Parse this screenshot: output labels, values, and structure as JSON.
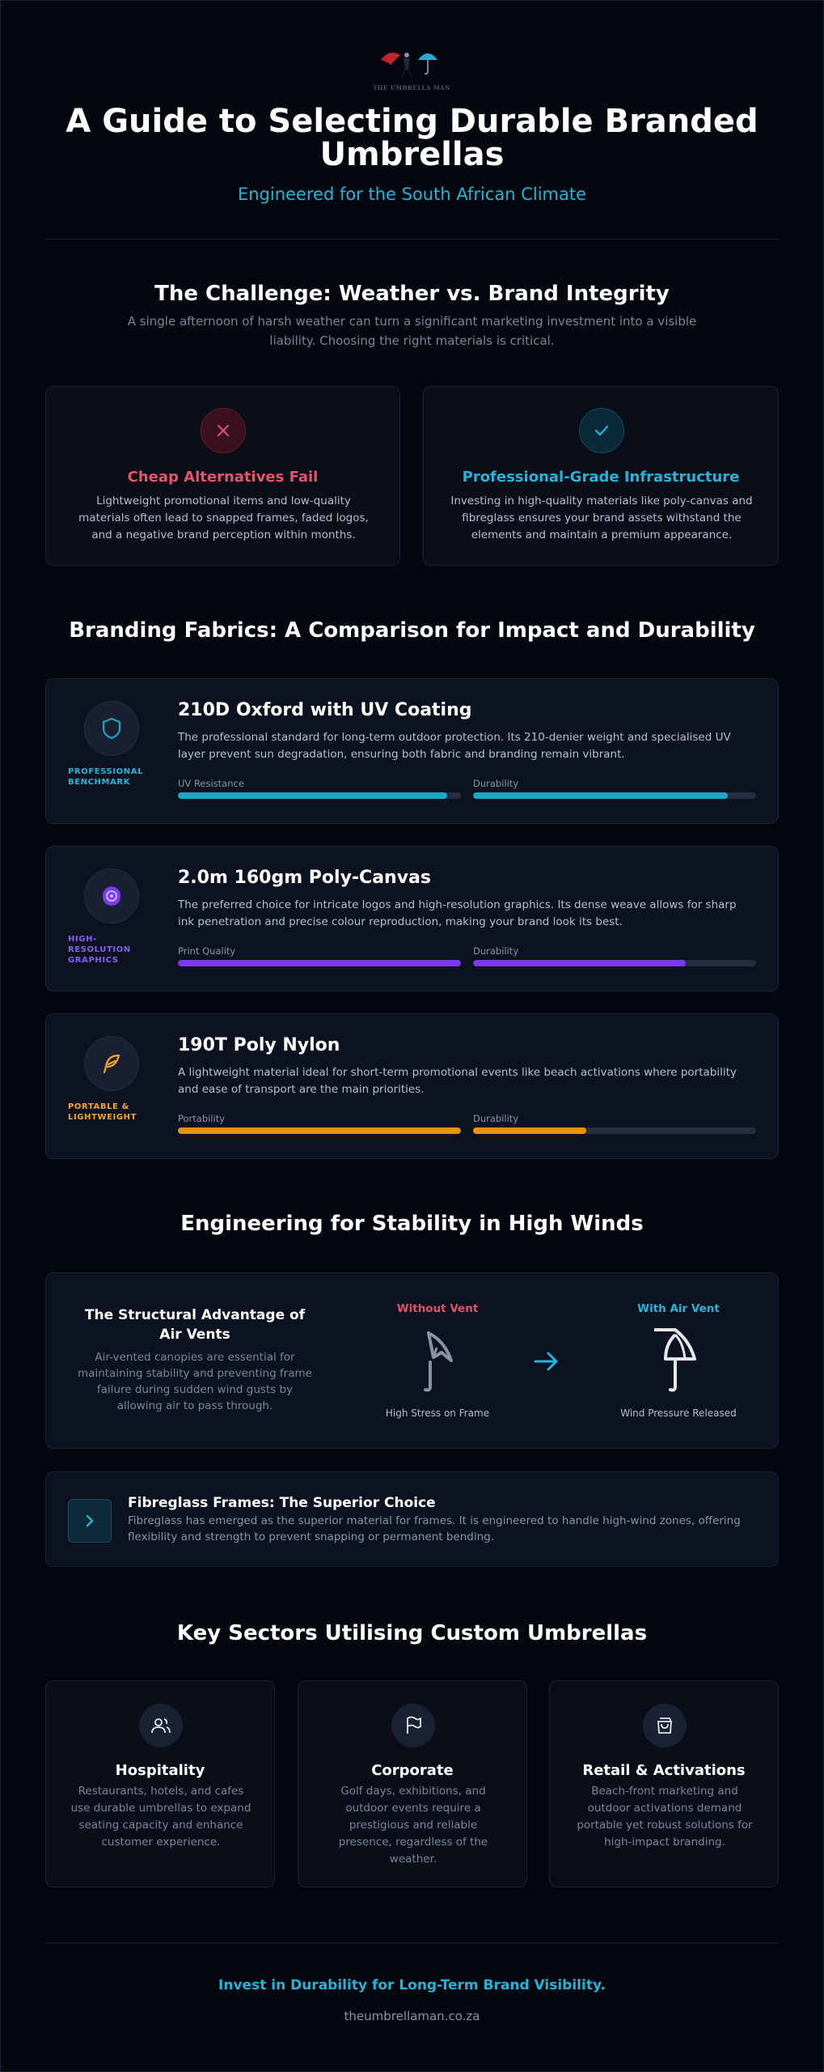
{
  "header": {
    "logo_text": "THE UMBRELLA MAN",
    "title": "A Guide to Selecting Durable Branded Umbrellas",
    "subtitle": "Engineered for the South African Climate"
  },
  "challenge": {
    "heading": "The Challenge: Weather vs. Brand Integrity",
    "lead": "A single afternoon of harsh weather can turn a significant marketing investment into a visible liability. Choosing the right materials is critical.",
    "cards": [
      {
        "title": "Cheap Alternatives Fail",
        "text": "Lightweight promotional items and low-quality materials often lead to snapped frames, faded logos, and a negative brand perception within months.",
        "icon": "x-icon",
        "color": "#e05268"
      },
      {
        "title": "Professional-Grade Infrastructure",
        "text": "Investing in high-quality materials like poly-canvas and fibreglass ensures your brand assets withstand the elements and maintain a premium appearance.",
        "icon": "check-icon",
        "color": "#22b5d9"
      }
    ]
  },
  "fabrics": {
    "heading": "Branding Fabrics: A Comparison for Impact and Durability",
    "items": [
      {
        "tag": "PROFESSIONAL BENCHMARK",
        "title": "210D Oxford with UV Coating",
        "desc": "The professional standard for long-term outdoor protection. Its 210-denier weight and specialised UV layer prevent sun degradation, ensuring both fabric and branding remain vibrant.",
        "icon": "shield-icon",
        "color": "#1ea7c6",
        "tag_color": "#22b5d9",
        "metrics": [
          {
            "label": "UV Resistance",
            "value": 0.95
          },
          {
            "label": "Durability",
            "value": 0.9
          }
        ]
      },
      {
        "tag": "HIGH-RESOLUTION GRAPHICS",
        "title": "2.0m 160gm Poly-Canvas",
        "desc": "The preferred choice for intricate logos and high-resolution graphics. Its dense weave allows for sharp ink penetration and precise colour reproduction, making your brand look its best.",
        "icon": "palette-icon",
        "color": "#7c3aed",
        "tag_color": "#8b5cf6",
        "metrics": [
          {
            "label": "Print Quality",
            "value": 1.0
          },
          {
            "label": "Durability",
            "value": 0.75
          }
        ]
      },
      {
        "tag": "PORTABLE & LIGHTWEIGHT",
        "title": "190T Poly Nylon",
        "desc": "A lightweight material ideal for short-term promotional events like beach activations where portability and ease of transport are the main priorities.",
        "icon": "feather-icon",
        "color": "#f0900f",
        "tag_color": "#f5a524",
        "metrics": [
          {
            "label": "Portability",
            "value": 1.0
          },
          {
            "label": "Durability",
            "value": 0.4
          }
        ]
      }
    ]
  },
  "stability": {
    "heading": "Engineering for Stability in High Winds",
    "vent_title": "The Structural Advantage of Air Vents",
    "vent_text": "Air-vented canopies are essential for maintaining stability and preventing frame failure during sudden wind gusts by allowing air to pass through.",
    "without_label": "Without Vent",
    "without_caption": "High Stress on Frame",
    "with_label": "With Air Vent",
    "with_caption": "Wind Pressure Released",
    "fibre_title": "Fibreglass Frames: The Superior Choice",
    "fibre_text": "Fibreglass has emerged as the superior material for frames. It is engineered to handle high-wind zones, offering flexibility and strength to prevent snapping or permanent bending."
  },
  "sectors": {
    "heading": "Key Sectors Utilising Custom Umbrellas",
    "items": [
      {
        "title": "Hospitality",
        "text": "Restaurants, hotels, and cafes use durable umbrellas to expand seating capacity and enhance customer experience.",
        "icon": "users-icon"
      },
      {
        "title": "Corporate",
        "text": "Golf days, exhibitions, and outdoor events require a prestigious and reliable presence, regardless of the weather.",
        "icon": "flag-icon"
      },
      {
        "title": "Retail & Activations",
        "text": "Beach-front marketing and outdoor activations demand portable yet robust solutions for high-impact branding.",
        "icon": "shopping-bag-icon"
      }
    ]
  },
  "footer": {
    "cta": "Invest in Durability for Long-Term Brand Visibility.",
    "url": "theumbrellaman.co.za"
  }
}
